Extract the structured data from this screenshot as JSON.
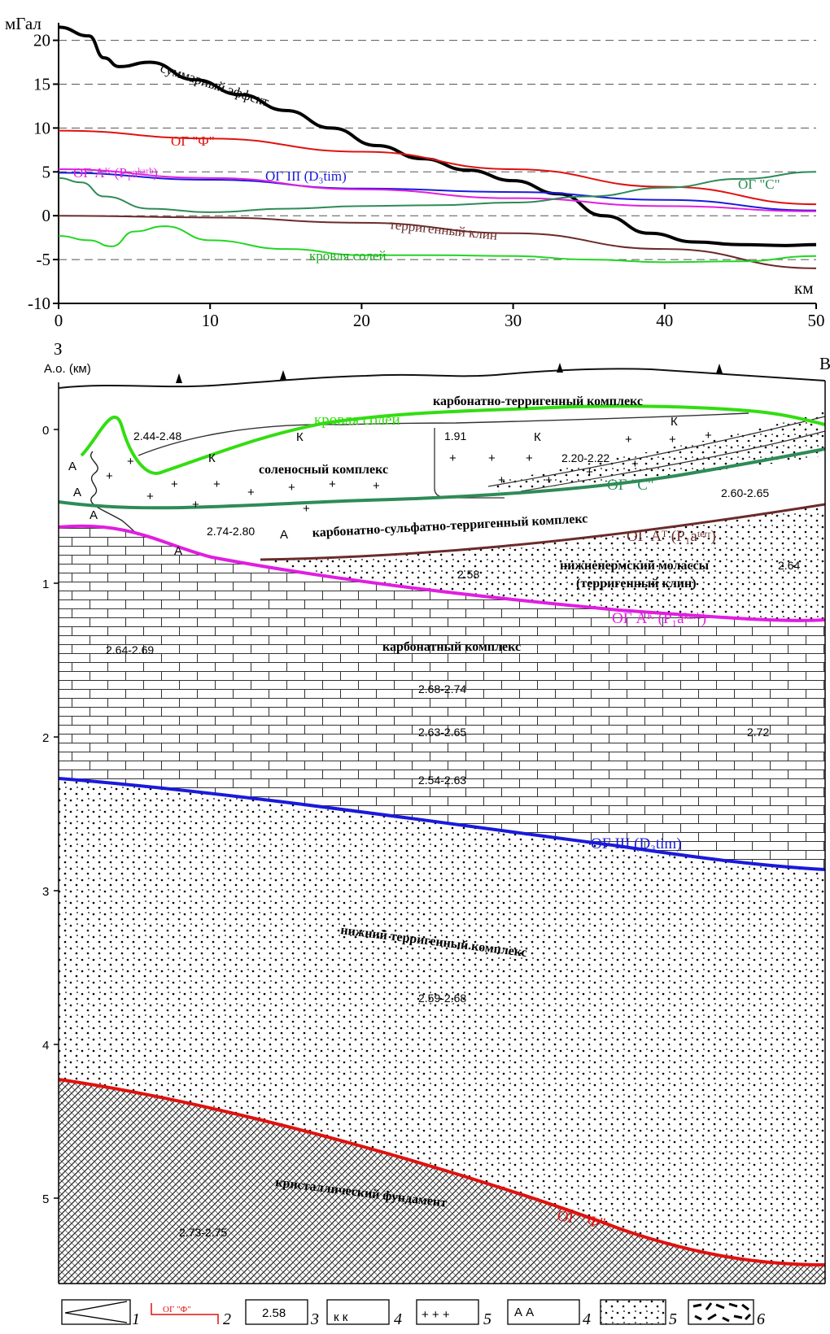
{
  "chart_data": [
    {
      "type": "line",
      "ylabel": "мГал",
      "xlabel": "км",
      "xlim": [
        0,
        50
      ],
      "ylim": [
        -10,
        22
      ],
      "xticks": [
        "0",
        "10",
        "20",
        "30",
        "40",
        "50"
      ],
      "yticks": [
        "20",
        "15",
        "10",
        "5",
        "0",
        "-5",
        "-10"
      ],
      "grid": "dashed horizontal",
      "series": [
        {
          "name": "суммарный эффект",
          "color": "#000000",
          "x": [
            0,
            2,
            3,
            4,
            6,
            9,
            12,
            15,
            18,
            21,
            24,
            27,
            30,
            33,
            36,
            39,
            42,
            45,
            48,
            50
          ],
          "y": [
            21.5,
            20.5,
            18,
            17,
            17.5,
            15.5,
            13.8,
            12,
            10,
            8,
            6.5,
            5.2,
            4,
            2.5,
            0,
            -2,
            -3,
            -3.3,
            -3.4,
            -3.3
          ]
        },
        {
          "name": "ОГ \"Ф\"",
          "color": "#e0120f",
          "x": [
            0,
            10,
            20,
            30,
            40,
            50
          ],
          "y": [
            9.7,
            8.8,
            7.3,
            5.3,
            3.3,
            1.3
          ]
        },
        {
          "name": "ОГ III (D3tim)",
          "color": "#1a1adb",
          "x": [
            0,
            10,
            20,
            30,
            40,
            50
          ],
          "y": [
            4.9,
            4.1,
            3.1,
            2.7,
            1.8,
            0.6
          ]
        },
        {
          "name": "ОГ Ак (P1aкарб)",
          "color": "#e01ee0",
          "x": [
            0,
            10,
            20,
            30,
            40,
            50
          ],
          "y": [
            5.3,
            4.3,
            3.0,
            2.0,
            1.1,
            0.5
          ]
        },
        {
          "name": "ОГ \"С\"",
          "color": "#2e8b57",
          "x": [
            0,
            1.5,
            3,
            6,
            10,
            15,
            20,
            25,
            30,
            35,
            40,
            45,
            50
          ],
          "y": [
            4.3,
            3.8,
            2.2,
            0.8,
            0.4,
            0.8,
            1.1,
            1.2,
            1.5,
            2.2,
            3.2,
            4.2,
            5.0
          ]
        },
        {
          "name": "терригенный клин",
          "color": "#6b2b2b",
          "x": [
            0,
            10,
            20,
            30,
            40,
            50
          ],
          "y": [
            0,
            -0.2,
            -0.8,
            -2.0,
            -3.8,
            -6.0
          ]
        },
        {
          "name": "кровля солей",
          "color": "#22d622",
          "x": [
            0,
            2,
            3.5,
            5,
            7,
            10,
            15,
            20,
            25,
            30,
            35,
            40,
            45,
            50
          ],
          "y": [
            -2.3,
            -2.8,
            -3.5,
            -1.8,
            -1.2,
            -2.8,
            -3.8,
            -4.5,
            -4.5,
            -4.6,
            -5.0,
            -5.3,
            -5.2,
            -4.6
          ]
        }
      ],
      "labels": {
        "sum": "суммарный эффект",
        "f": "ОГ \"Ф\"",
        "ak": "ОГ Aᴷ (P₁aᵏᵃʳᵇ)",
        "d3": "ОГ III (D₃tim)",
        "c": "ОГ \"С\"",
        "clin": "терригенный клин",
        "salt": "кровля солей"
      }
    },
    {
      "type": "diagram",
      "corner_left": "З",
      "corner_right": "В",
      "axis_label": "A.o. (км)",
      "depth_ticks": [
        "0",
        "1",
        "2",
        "3",
        "4",
        "5"
      ],
      "complexes": [
        "карбонатно-терригенный комплекс",
        "соленосный комплекс",
        "карбонатно-сульфатно-терригенный комплекс",
        "нижнепермский молассы",
        "(терригенный клин)",
        "карбонатный комплекс",
        "нижний терригенный комплекс",
        "кристаллический фундамент"
      ],
      "horizons": {
        "salt": "кровля солей",
        "c": "ОГ \"С\"",
        "at": "ОГ Aᵀ (P₁aᵗᵉʳʳ)",
        "ak": "ОГ Aᴷ (P₁aᵏᵃʳᵇ)",
        "d3": "ОГ III (D₃tim)",
        "f": "ОГ \"Ф\""
      },
      "densities": [
        "2.44-2.48",
        "1.91",
        "2.20-2.22",
        "2.60-2.65",
        "2.74-2.80",
        "2.58",
        "2.64",
        "2.64-2.69",
        "2.68-2.74",
        "2.63-2.65",
        "2.72",
        "2.54-2.63",
        "2.59-2.68",
        "2.73-2.75"
      ],
      "symbols": {
        "k": "К",
        "a": "А"
      }
    }
  ],
  "legend": {
    "items": [
      {
        "num": "1"
      },
      {
        "num": "2",
        "sample": "ОГ \"Ф\""
      },
      {
        "num": "3",
        "sample": "2.58"
      },
      {
        "num": "4",
        "sample": "к   к"
      },
      {
        "num": "5",
        "sample": "+ + +"
      },
      {
        "num": "4",
        "sample": "А   А"
      },
      {
        "num": "5"
      },
      {
        "num": "6"
      }
    ]
  },
  "colors": {
    "sum": "#000000",
    "f": "#e0120f",
    "d3": "#1a1adb",
    "ak": "#e01ee0",
    "c": "#2e8b57",
    "clin": "#6b2b2b",
    "salt": "#22d622"
  }
}
